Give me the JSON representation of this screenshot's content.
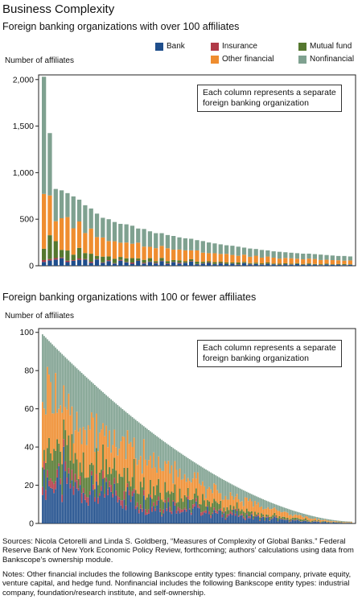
{
  "title": "Business Complexity",
  "panel1": {
    "subtitle": "Foreign banking organizations with over 100 affiliates",
    "ylabel": "Number of affiliates",
    "note_line1": "Each column represents a separate",
    "note_line2": "foreign banking organization"
  },
  "panel2": {
    "subtitle": "Foreign banking organizations with 100 or fewer affiliates",
    "ylabel": "Number of affiliates",
    "note_line1": "Each column represents a separate",
    "note_line2": "foreign banking organization"
  },
  "legend": {
    "bank": "Bank",
    "insurance": "Insurance",
    "mutual": "Mutual fund",
    "other": "Other financial",
    "nonfin": "Nonfinancial"
  },
  "colors": {
    "bank": "#1f4e8c",
    "insurance": "#b03a48",
    "mutual": "#55782f",
    "other": "#ef8d2f",
    "nonfin": "#7fa190"
  },
  "footer": {
    "sources": "Sources: Nicola Cetorelli and Linda S. Goldberg, “Measures of Complexity of Global Banks.” Federal Reserve Bank of New York Economic Policy Review, forthcoming; authors’ calculations using data from Bankscope’s ownership module.",
    "notes": "Notes: Other financial includes the following Bankscope entity types: financial company, private equity, venture capital, and hedge fund. Nonfinancial includes the following Bankscope entity types: industrial company, foundation/research institute, and self-ownership."
  },
  "chart_data": [
    {
      "type": "bar",
      "stacked": true,
      "title": "Foreign banking organizations with over 100 affiliates",
      "ylabel": "Number of affiliates",
      "ylim": [
        0,
        2050
      ],
      "yticks": [
        0,
        500,
        1000,
        1500,
        2000
      ],
      "ytick_labels": [
        "0",
        "500",
        "1,000",
        "1,500",
        "2,000"
      ],
      "grid": false,
      "legend_position": "top-right",
      "totals": [
        2030,
        1425,
        825,
        810,
        780,
        745,
        710,
        650,
        615,
        560,
        515,
        500,
        470,
        450,
        445,
        430,
        400,
        395,
        370,
        350,
        350,
        330,
        320,
        305,
        295,
        290,
        275,
        265,
        250,
        240,
        230,
        220,
        215,
        205,
        195,
        185,
        180,
        170,
        165,
        155,
        150,
        145,
        140,
        135,
        130,
        130,
        125,
        120,
        115,
        110,
        105,
        105,
        100
      ],
      "series": [
        {
          "name": "Bank",
          "fraction": [
            0.02,
            0.04,
            0.08,
            0.1,
            0.05,
            0.07,
            0.09,
            0.1,
            0.05,
            0.12,
            0.06,
            0.1,
            0.05,
            0.12,
            0.08,
            0.05,
            0.13,
            0.06,
            0.11,
            0.07,
            0.14,
            0.06,
            0.12,
            0.08,
            0.1,
            0.15,
            0.06,
            0.09,
            0.12,
            0.07,
            0.11,
            0.08,
            0.1,
            0.06,
            0.14,
            0.08,
            0.1,
            0.07,
            0.12,
            0.09,
            0.06,
            0.11,
            0.08,
            0.13,
            0.07,
            0.1,
            0.09,
            0.06,
            0.12,
            0.08,
            0.11,
            0.07,
            0.1
          ]
        },
        {
          "name": "Insurance",
          "fraction": [
            0.01,
            0.01,
            0.02,
            0.01,
            0.02,
            0.01,
            0.02,
            0.01,
            0.02,
            0.01,
            0.01,
            0.02,
            0.01,
            0.02,
            0.01,
            0.03,
            0.01,
            0.02,
            0.01,
            0.02,
            0.01,
            0.02,
            0.01,
            0.03,
            0.01,
            0.02,
            0.01,
            0.01,
            0.02,
            0.01,
            0.02,
            0.01,
            0.01,
            0.02,
            0.01,
            0.02,
            0.01,
            0.02,
            0.01,
            0.01,
            0.02,
            0.01,
            0.02,
            0.01,
            0.02,
            0.01,
            0.01,
            0.02,
            0.01,
            0.02,
            0.01,
            0.02,
            0.01
          ]
        },
        {
          "name": "Mutual fund",
          "fraction": [
            0.06,
            0.18,
            0.22,
            0.1,
            0.14,
            0.08,
            0.16,
            0.1,
            0.14,
            0.06,
            0.12,
            0.08,
            0.1,
            0.07,
            0.09,
            0.11,
            0.06,
            0.08,
            0.1,
            0.05,
            0.09,
            0.07,
            0.06,
            0.08,
            0.05,
            0.07,
            0.09,
            0.06,
            0.05,
            0.08,
            0.06,
            0.07,
            0.05,
            0.09,
            0.06,
            0.05,
            0.07,
            0.06,
            0.08,
            0.05,
            0.07,
            0.06,
            0.05,
            0.07,
            0.06,
            0.08,
            0.05,
            0.06,
            0.07,
            0.05,
            0.06,
            0.08,
            0.05
          ]
        },
        {
          "name": "Other financial",
          "fraction": [
            0.29,
            0.3,
            0.26,
            0.42,
            0.46,
            0.38,
            0.4,
            0.33,
            0.44,
            0.36,
            0.4,
            0.33,
            0.4,
            0.34,
            0.38,
            0.36,
            0.42,
            0.36,
            0.33,
            0.4,
            0.37,
            0.42,
            0.35,
            0.38,
            0.4,
            0.33,
            0.44,
            0.37,
            0.35,
            0.4,
            0.36,
            0.42,
            0.38,
            0.35,
            0.4,
            0.37,
            0.42,
            0.36,
            0.39,
            0.41,
            0.36,
            0.4,
            0.42,
            0.35,
            0.38,
            0.4,
            0.43,
            0.37,
            0.36,
            0.4,
            0.38,
            0.35,
            0.41
          ]
        },
        {
          "name": "Nonfinancial",
          "fraction": [
            0.62,
            0.47,
            0.42,
            0.37,
            0.33,
            0.46,
            0.33,
            0.46,
            0.35,
            0.45,
            0.41,
            0.47,
            0.44,
            0.45,
            0.44,
            0.45,
            0.38,
            0.48,
            0.45,
            0.46,
            0.39,
            0.43,
            0.46,
            0.43,
            0.44,
            0.43,
            0.4,
            0.47,
            0.46,
            0.44,
            0.45,
            0.42,
            0.46,
            0.48,
            0.39,
            0.48,
            0.4,
            0.49,
            0.4,
            0.44,
            0.49,
            0.42,
            0.43,
            0.44,
            0.47,
            0.41,
            0.42,
            0.49,
            0.44,
            0.45,
            0.44,
            0.48,
            0.43
          ]
        }
      ]
    },
    {
      "type": "bar",
      "stacked": true,
      "title": "Foreign banking organizations with 100 or fewer affiliates",
      "ylabel": "Number of affiliates",
      "ylim": [
        0,
        102
      ],
      "yticks": [
        0,
        20,
        40,
        60,
        80,
        100
      ],
      "ytick_labels": [
        "0",
        "20",
        "40",
        "60",
        "80",
        "100"
      ],
      "grid": false,
      "legend_position": "top-right",
      "bar_count": 190,
      "max_total": 99,
      "min_total": 1,
      "composition": {
        "Bank": 0.22,
        "Insurance": 0.04,
        "Mutual fund": 0.14,
        "Other financial": 0.28,
        "Nonfinancial": 0.32
      }
    }
  ]
}
